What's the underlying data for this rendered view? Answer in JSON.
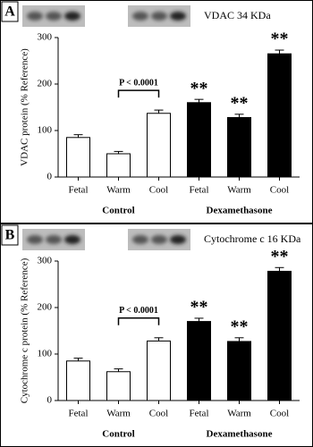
{
  "chart_data": [
    {
      "type": "bar",
      "panel": "A",
      "blot_label": "VDAC 34 KDa",
      "ylabel": "VDAC protein (% Reference)",
      "categories": [
        "Fetal",
        "Warm",
        "Cool",
        "Fetal",
        "Warm",
        "Cool"
      ],
      "groups": [
        "Control",
        "Dexamethasone"
      ],
      "values": [
        85,
        50,
        137,
        160,
        128,
        265
      ],
      "errors": [
        6,
        5,
        7,
        7,
        7,
        8
      ],
      "colors": [
        "#ffffff",
        "#ffffff",
        "#ffffff",
        "#000000",
        "#000000",
        "#000000"
      ],
      "value_labels": [
        null,
        null,
        null,
        "**",
        "**",
        "**"
      ],
      "annotation": "P < 0.0001",
      "ylim": [
        0,
        300
      ],
      "yticks": [
        0,
        100,
        200,
        300
      ]
    },
    {
      "type": "bar",
      "panel": "B",
      "blot_label": "Cytochrome c 16 KDa",
      "ylabel": "Cytochrome c protein (% Reference)",
      "categories": [
        "Fetal",
        "Warm",
        "Cool",
        "Fetal",
        "Warm",
        "Cool"
      ],
      "groups": [
        "Control",
        "Dexamethasone"
      ],
      "values": [
        85,
        62,
        128,
        170,
        127,
        278
      ],
      "errors": [
        6,
        6,
        7,
        7,
        8,
        8
      ],
      "colors": [
        "#ffffff",
        "#ffffff",
        "#ffffff",
        "#000000",
        "#000000",
        "#000000"
      ],
      "value_labels": [
        null,
        null,
        null,
        "**",
        "**",
        "**"
      ],
      "annotation": "P < 0.0001",
      "ylim": [
        0,
        300
      ],
      "yticks": [
        0,
        100,
        200,
        300
      ]
    }
  ]
}
